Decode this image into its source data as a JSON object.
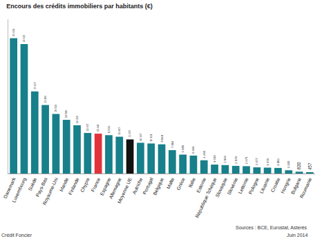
{
  "chart_data": {
    "type": "bar",
    "title": "Encours des crédits immobiliers par habitants (€)",
    "categories": [
      "Danemark",
      "Luxembourg",
      "Suède",
      "Pays-Bas",
      "Royaume-Uni",
      "Irlande",
      "Finlande",
      "Chypre",
      "France",
      "Espagne",
      "Allemagne",
      "Moyenne UE",
      "Autriche",
      "Portugal",
      "Belgique",
      "Malte",
      "Grèce",
      "Italie",
      "Estonie",
      "République Tchèque",
      "Slovaquie",
      "Slovénie",
      "Lettonie",
      "Pologne",
      "Lituanie",
      "Croatie",
      "Hongrie",
      "Bulgarie",
      "Roumanie"
    ],
    "values": [
      45631,
      43623,
      27677,
      23100,
      20058,
      18098,
      16269,
      13677,
      13444,
      12936,
      12407,
      11500,
      10367,
      10131,
      9848,
      7884,
      6385,
      6045,
      4468,
      3010,
      2846,
      2578,
      2475,
      2077,
      1976,
      1882,
      1100,
      620,
      457
    ],
    "value_labels": [
      "45 631",
      "43 623",
      "27 677",
      "23 100",
      "20 058",
      "18 098",
      "16 269",
      "13 677",
      "13 444",
      "12 936",
      "12 407",
      "11 500",
      "10 367",
      "10 131",
      "9 848",
      "7 884",
      "6 385",
      "6 045",
      "4 468",
      "3 010",
      "2 846",
      "2 578",
      "2 475",
      "2 077",
      "1 976",
      "1 882",
      "1 100",
      "620",
      "457"
    ],
    "colors": [
      "#17808a",
      "#17808a",
      "#17808a",
      "#17808a",
      "#17808a",
      "#17808a",
      "#17808a",
      "#17808a",
      "#e2333b",
      "#17808a",
      "#17808a",
      "#111111",
      "#17808a",
      "#17808a",
      "#17808a",
      "#17808a",
      "#17808a",
      "#17808a",
      "#17808a",
      "#17808a",
      "#17808a",
      "#17808a",
      "#17808a",
      "#17808a",
      "#17808a",
      "#17808a",
      "#17808a",
      "#17808a",
      "#17808a"
    ],
    "ylim": [
      0,
      52000
    ],
    "data_labels": true,
    "tick_labels": "x",
    "grid": false,
    "annotations": [
      "Crédit Foncier",
      "Sources : BCE, Eurostat, Asterès",
      "Juin 2014"
    ]
  }
}
